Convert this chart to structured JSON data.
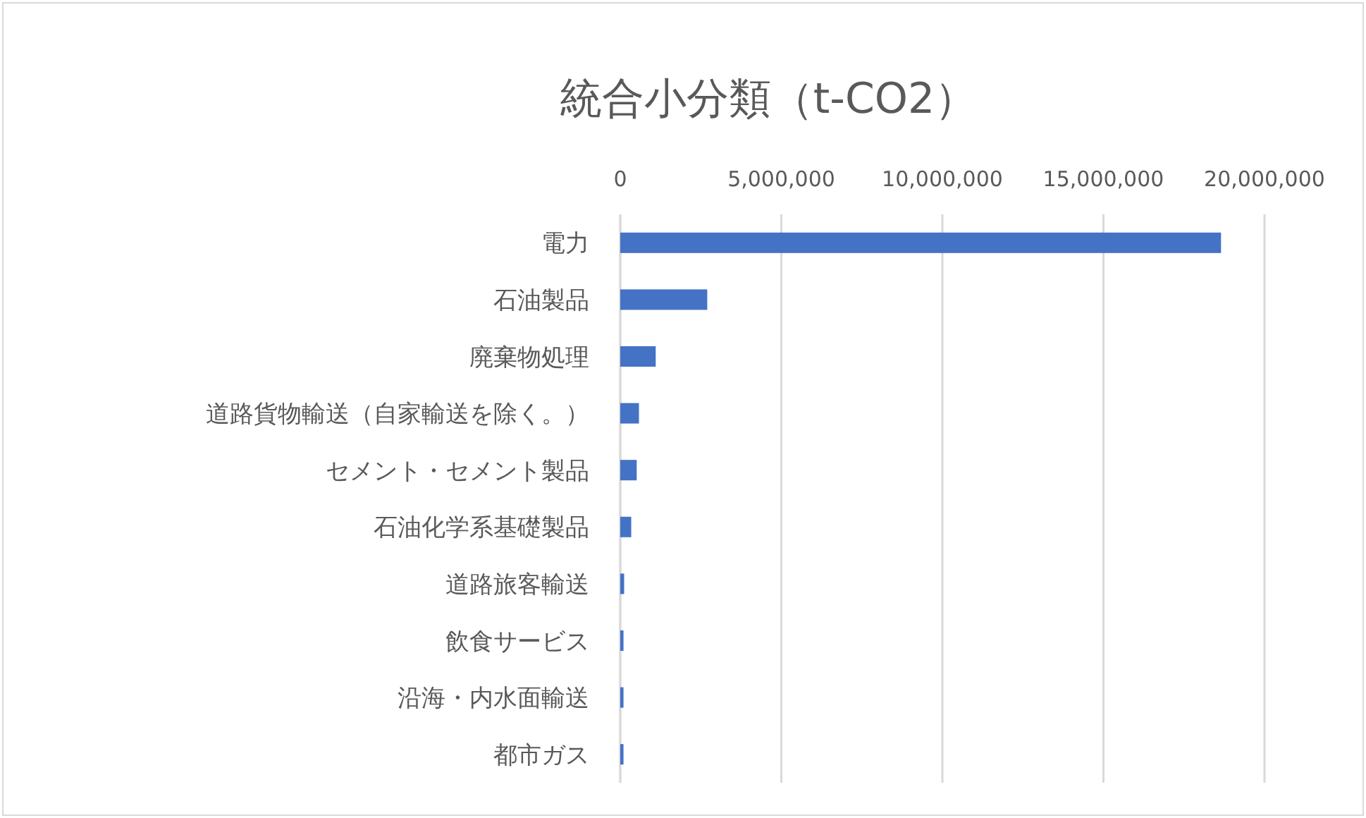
{
  "chart_data": {
    "type": "bar",
    "orientation": "horizontal",
    "title": "統合小分類（t-CO2）",
    "categories": [
      "電力",
      "石油製品",
      "廃棄物処理",
      "道路貨物輸送（自家輸送を除く。）",
      "セメント・セメント製品",
      "石油化学系基礎製品",
      "道路旅客輸送",
      "飲食サービス",
      "沿海・内水面輸送",
      "都市ガス"
    ],
    "values": [
      18650000,
      2700000,
      1100000,
      580000,
      510000,
      340000,
      120000,
      100000,
      100000,
      100000
    ],
    "color": "#4472c4",
    "xlim": [
      0,
      20000000
    ],
    "xticks": [
      0,
      {
        "value": 5000000,
        "label": "5,000,000"
      },
      {
        "value": 10000000,
        "label": "10,000,000"
      },
      {
        "value": 15000000,
        "label": "15,000,000"
      },
      {
        "value": 20000000,
        "label": "20,000,000"
      }
    ],
    "grid": "x"
  }
}
